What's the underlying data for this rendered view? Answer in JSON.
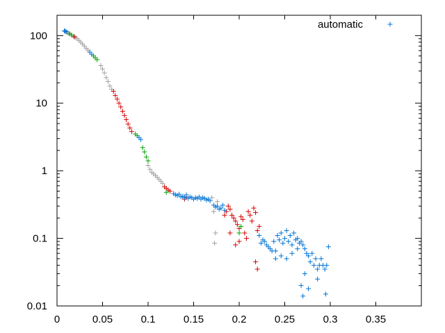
{
  "chart_data": {
    "type": "scatter",
    "title": "",
    "xlabel": "",
    "ylabel": "",
    "xlim": [
      0,
      0.4
    ],
    "ylim": [
      0.01,
      200
    ],
    "yscale": "log",
    "grid": false,
    "legend_position": "top-right",
    "x_ticks": [
      0,
      0.05,
      0.1,
      0.15,
      0.2,
      0.25,
      0.3,
      0.35
    ],
    "x_tick_labels": [
      "0",
      "0.05",
      "0.1",
      "0.15",
      "0.2",
      "0.25",
      "0.3",
      "0.35"
    ],
    "y_ticks": [
      0.01,
      0.1,
      1,
      10,
      100
    ],
    "y_tick_labels": [
      "0.01",
      "0.1",
      "1",
      "10",
      "100"
    ],
    "legend": [
      {
        "label": "automatic",
        "color": "#0072d4",
        "marker": "plus"
      }
    ],
    "series": [
      {
        "name": "automatic",
        "color": "#0072d4",
        "marker": "plus",
        "points": [
          [
            0.008,
            118
          ],
          [
            0.009,
            116
          ],
          [
            0.01,
            114
          ],
          [
            0.036,
            57
          ],
          [
            0.038,
            53
          ],
          [
            0.09,
            3.1
          ],
          [
            0.092,
            2.9
          ],
          [
            0.128,
            0.46
          ],
          [
            0.13,
            0.44
          ],
          [
            0.132,
            0.43
          ],
          [
            0.134,
            0.45
          ],
          [
            0.136,
            0.41
          ],
          [
            0.138,
            0.42
          ],
          [
            0.14,
            0.4
          ],
          [
            0.142,
            0.44
          ],
          [
            0.144,
            0.39
          ],
          [
            0.146,
            0.41
          ],
          [
            0.148,
            0.4
          ],
          [
            0.15,
            0.38
          ],
          [
            0.152,
            0.4
          ],
          [
            0.154,
            0.39
          ],
          [
            0.156,
            0.41
          ],
          [
            0.158,
            0.38
          ],
          [
            0.16,
            0.4
          ],
          [
            0.162,
            0.39
          ],
          [
            0.164,
            0.37
          ],
          [
            0.166,
            0.38
          ],
          [
            0.168,
            0.36
          ],
          [
            0.172,
            0.31
          ],
          [
            0.174,
            0.29
          ],
          [
            0.176,
            0.3
          ],
          [
            0.178,
            0.27
          ],
          [
            0.18,
            0.28
          ],
          [
            0.182,
            0.31
          ],
          [
            0.184,
            0.26
          ],
          [
            0.222,
            0.11
          ],
          [
            0.224,
            0.085
          ],
          [
            0.226,
            0.095
          ],
          [
            0.228,
            0.09
          ],
          [
            0.23,
            0.08
          ],
          [
            0.232,
            0.075
          ],
          [
            0.234,
            0.07
          ],
          [
            0.236,
            0.065
          ],
          [
            0.238,
            0.09
          ],
          [
            0.24,
            0.05
          ],
          [
            0.242,
            0.11
          ],
          [
            0.244,
            0.095
          ],
          [
            0.246,
            0.12
          ],
          [
            0.248,
            0.085
          ],
          [
            0.25,
            0.1
          ],
          [
            0.252,
            0.13
          ],
          [
            0.254,
            0.09
          ],
          [
            0.256,
            0.11
          ],
          [
            0.258,
            0.08
          ],
          [
            0.26,
            0.12
          ],
          [
            0.262,
            0.095
          ],
          [
            0.264,
            0.1
          ],
          [
            0.266,
            0.085
          ],
          [
            0.268,
            0.09
          ],
          [
            0.27,
            0.08
          ],
          [
            0.272,
            0.07
          ],
          [
            0.274,
            0.06
          ],
          [
            0.276,
            0.055
          ],
          [
            0.278,
            0.045
          ],
          [
            0.28,
            0.06
          ],
          [
            0.282,
            0.04
          ],
          [
            0.284,
            0.05
          ],
          [
            0.286,
            0.035
          ],
          [
            0.288,
            0.04
          ],
          [
            0.29,
            0.05
          ],
          [
            0.292,
            0.04
          ],
          [
            0.294,
            0.035
          ],
          [
            0.296,
            0.04
          ],
          [
            0.298,
            0.075
          ],
          [
            0.295,
            0.015
          ],
          [
            0.27,
            0.014
          ],
          [
            0.268,
            0.02
          ],
          [
            0.272,
            0.03
          ],
          [
            0.276,
            0.018
          ],
          [
            0.252,
            0.05
          ],
          [
            0.246,
            0.055
          ],
          [
            0.24,
            0.065
          ],
          [
            0.258,
            0.06
          ],
          [
            0.264,
            0.07
          ],
          [
            0.286,
            0.025
          ]
        ]
      }
    ],
    "other_point_groups": [
      {
        "color": "#a0a0a0",
        "points": [
          [
            0.011,
            112
          ],
          [
            0.012,
            110
          ],
          [
            0.013,
            108
          ],
          [
            0.018,
            98
          ],
          [
            0.02,
            94
          ],
          [
            0.022,
            90
          ],
          [
            0.024,
            85
          ],
          [
            0.026,
            80
          ],
          [
            0.028,
            75
          ],
          [
            0.03,
            70
          ],
          [
            0.032,
            65
          ],
          [
            0.034,
            61
          ],
          [
            0.048,
            36
          ],
          [
            0.05,
            32
          ],
          [
            0.052,
            28
          ],
          [
            0.054,
            24
          ],
          [
            0.056,
            21
          ],
          [
            0.058,
            18
          ],
          [
            0.06,
            16
          ],
          [
            0.1,
            1.2
          ],
          [
            0.102,
            1.05
          ],
          [
            0.104,
            0.95
          ],
          [
            0.106,
            0.9
          ],
          [
            0.108,
            0.85
          ],
          [
            0.11,
            0.8
          ],
          [
            0.112,
            0.75
          ],
          [
            0.114,
            0.7
          ],
          [
            0.116,
            0.65
          ],
          [
            0.17,
            0.4
          ],
          [
            0.172,
            0.25
          ],
          [
            0.174,
            0.12
          ],
          [
            0.173,
            0.085
          ],
          [
            0.176,
            0.35
          ]
        ]
      },
      {
        "color": "#d40000",
        "points": [
          [
            0.019,
            96
          ],
          [
            0.062,
            15
          ],
          [
            0.064,
            13
          ],
          [
            0.066,
            11.5
          ],
          [
            0.068,
            10
          ],
          [
            0.07,
            8.8
          ],
          [
            0.072,
            7.6
          ],
          [
            0.074,
            6.6
          ],
          [
            0.076,
            5.7
          ],
          [
            0.078,
            4.9
          ],
          [
            0.08,
            4.3
          ],
          [
            0.082,
            3.8
          ],
          [
            0.118,
            0.58
          ],
          [
            0.12,
            0.55
          ],
          [
            0.122,
            0.52
          ],
          [
            0.124,
            0.5
          ],
          [
            0.14,
            0.38
          ],
          [
            0.142,
            0.41
          ],
          [
            0.186,
            0.25
          ],
          [
            0.188,
            0.3
          ],
          [
            0.19,
            0.27
          ],
          [
            0.192,
            0.22
          ],
          [
            0.194,
            0.2
          ],
          [
            0.196,
            0.18
          ],
          [
            0.198,
            0.16
          ],
          [
            0.2,
            0.14
          ],
          [
            0.202,
            0.21
          ],
          [
            0.204,
            0.19
          ],
          [
            0.206,
            0.12
          ],
          [
            0.208,
            0.1
          ],
          [
            0.21,
            0.25
          ],
          [
            0.212,
            0.22
          ],
          [
            0.214,
            0.18
          ],
          [
            0.216,
            0.28
          ],
          [
            0.218,
            0.24
          ],
          [
            0.22,
            0.13
          ],
          [
            0.222,
            0.15
          ],
          [
            0.2,
            0.09
          ],
          [
            0.196,
            0.08
          ],
          [
            0.218,
            0.045
          ],
          [
            0.22,
            0.035
          ],
          [
            0.184,
            0.22
          ],
          [
            0.19,
            0.12
          ]
        ]
      },
      {
        "color": "#00a000",
        "points": [
          [
            0.014,
            106
          ],
          [
            0.016,
            102
          ],
          [
            0.04,
            50
          ],
          [
            0.042,
            47
          ],
          [
            0.044,
            44
          ],
          [
            0.086,
            3.5
          ],
          [
            0.088,
            3.3
          ],
          [
            0.094,
            2.2
          ],
          [
            0.096,
            1.9
          ],
          [
            0.098,
            1.6
          ],
          [
            0.1,
            1.4
          ],
          [
            0.12,
            0.48
          ],
          [
            0.2,
            0.12
          ],
          [
            0.202,
            0.15
          ]
        ]
      }
    ]
  }
}
